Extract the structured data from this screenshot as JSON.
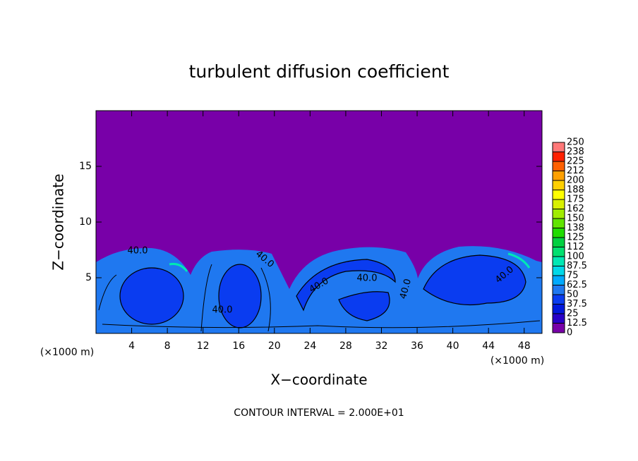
{
  "chart_data": {
    "type": "contour",
    "title": "turbulent diffusion coefficient",
    "x_label": "X−coordinate",
    "y_label": "Z−coordinate",
    "x_unit": "(×1000 m)",
    "x_unit_right": "(×1000 m)",
    "footnote": "CONTOUR INTERVAL = 2.000E+01",
    "xlim": [
      0,
      50
    ],
    "ylim": [
      0,
      20
    ],
    "xticks": [
      4,
      8,
      12,
      16,
      20,
      24,
      28,
      32,
      36,
      40,
      44,
      48
    ],
    "yticks": [
      5,
      10,
      15
    ],
    "contour_labels": [
      {
        "value": 40,
        "label": "40.0"
      },
      {
        "value": 40,
        "label": "40.0"
      },
      {
        "value": 40,
        "label": "40.0"
      },
      {
        "value": 40,
        "label": "40.0"
      },
      {
        "value": 40,
        "label": "40.0"
      },
      {
        "value": 40,
        "label": "40.0"
      },
      {
        "value": 40,
        "label": "40.0"
      }
    ],
    "colorbar": {
      "levels": [
        0,
        12.5,
        25,
        37.5,
        50,
        62.5,
        75,
        87.5,
        100,
        112,
        125,
        138,
        150,
        162,
        175,
        188,
        200,
        212,
        225,
        238,
        250
      ],
      "colors": [
        "#7800a8",
        "#2800c8",
        "#0018dc",
        "#0a3cf0",
        "#1f78f0",
        "#00aaff",
        "#00d8e8",
        "#00e8b4",
        "#00e070",
        "#00d040",
        "#20dc00",
        "#60e400",
        "#a0ec00",
        "#d8f000",
        "#ffff00",
        "#ffd000",
        "#ffa000",
        "#ff6000",
        "#ff2000",
        "#ff7878"
      ]
    }
  }
}
